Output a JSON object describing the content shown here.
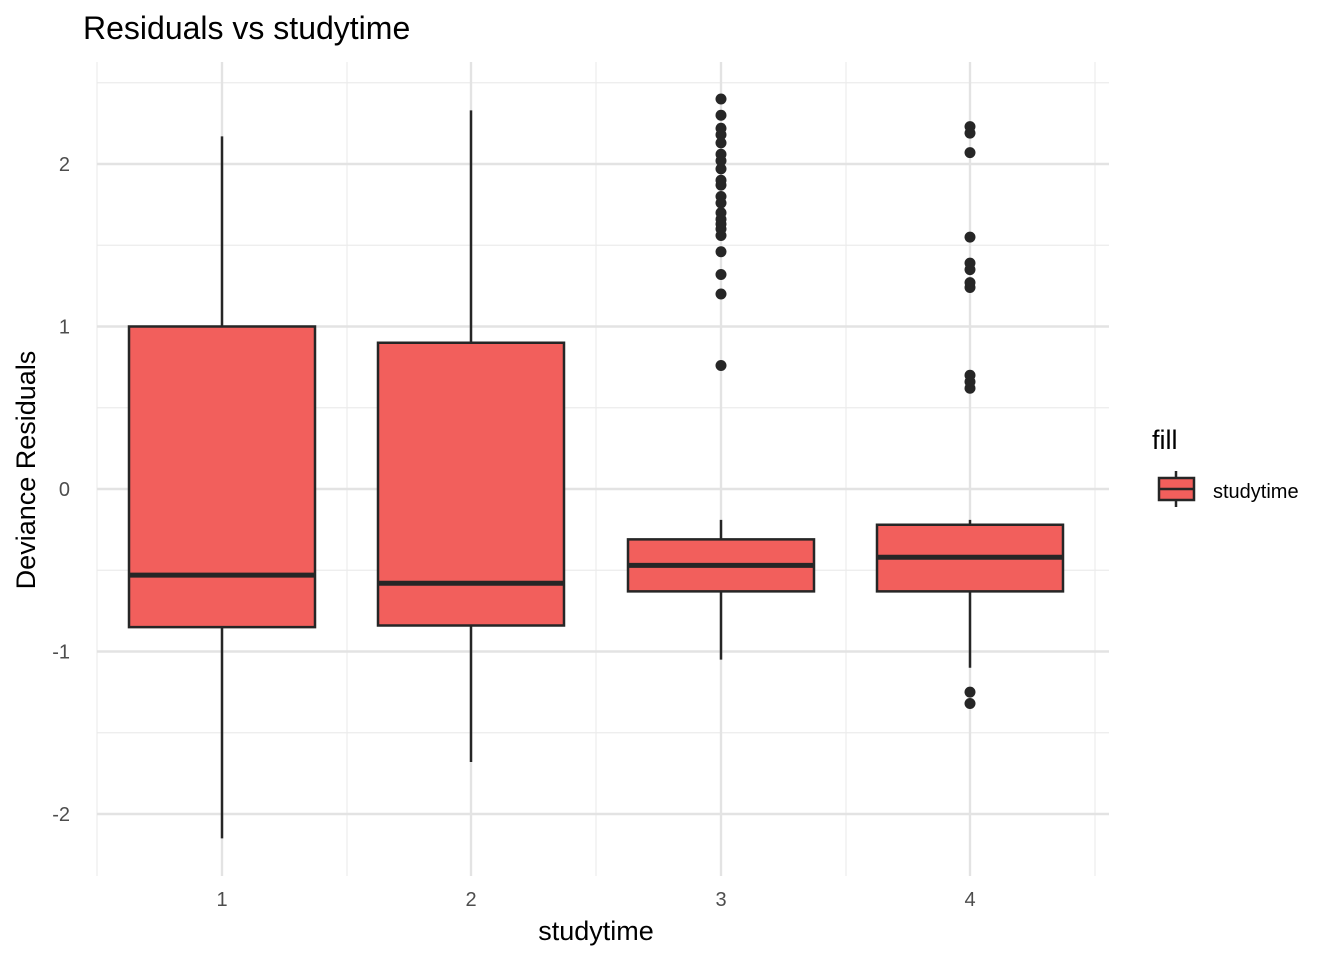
{
  "chart_data": {
    "type": "boxplot",
    "title": "Residuals vs studytime",
    "xlabel": "studytime",
    "ylabel": "Deviance Residuals",
    "categories": [
      "1",
      "2",
      "3",
      "4"
    ],
    "ylim": [
      -2.3,
      2.6
    ],
    "yticks": [
      -2,
      -1,
      0,
      1,
      2
    ],
    "ytick_labels": [
      "-2",
      "-1",
      "0",
      "1",
      "2"
    ],
    "grid": true,
    "legend": {
      "title": "fill",
      "position": "right",
      "entries": [
        {
          "label": "studytime",
          "color": "#F25F5C"
        }
      ]
    },
    "fill_color": "#F25F5C",
    "line_color": "#262626",
    "boxes": [
      {
        "category": "1",
        "whisker_low": -2.15,
        "q1": -0.85,
        "median": -0.53,
        "q3": 1.0,
        "whisker_high": 2.17,
        "outliers": []
      },
      {
        "category": "2",
        "whisker_low": -1.68,
        "q1": -0.84,
        "median": -0.58,
        "q3": 0.9,
        "whisker_high": 2.33,
        "outliers": []
      },
      {
        "category": "3",
        "whisker_low": -1.05,
        "q1": -0.63,
        "median": -0.47,
        "q3": -0.31,
        "whisker_high": -0.19,
        "outliers": [
          0.76,
          1.2,
          1.32,
          1.46,
          1.56,
          1.6,
          1.63,
          1.66,
          1.7,
          1.76,
          1.8,
          1.87,
          1.9,
          1.97,
          2.02,
          2.06,
          2.13,
          2.18,
          2.22,
          2.3,
          2.4
        ]
      },
      {
        "category": "4",
        "whisker_low": -1.1,
        "q1": -0.63,
        "median": -0.42,
        "q3": -0.22,
        "whisker_high": -0.19,
        "outliers": [
          -1.32,
          -1.25,
          0.62,
          0.66,
          0.7,
          1.24,
          1.27,
          1.35,
          1.39,
          1.55,
          2.07,
          2.19,
          2.23
        ]
      }
    ]
  }
}
